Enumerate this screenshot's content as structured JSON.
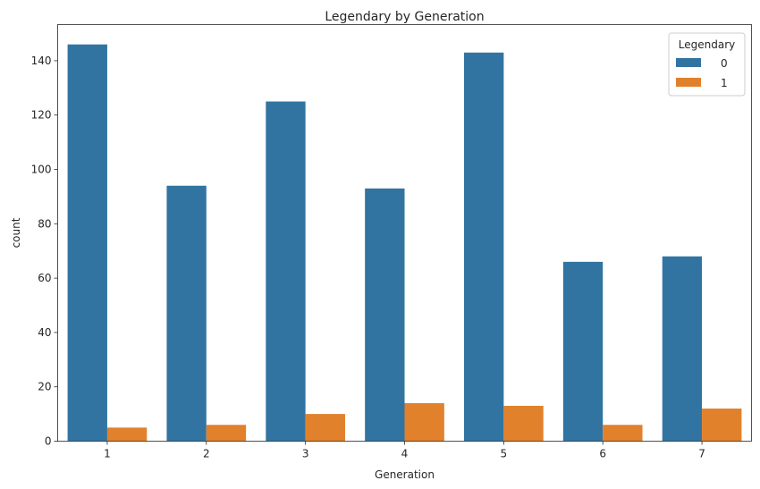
{
  "chart_data": {
    "type": "bar",
    "title": "Legendary by Generation",
    "xlabel": "Generation",
    "ylabel": "count",
    "categories": [
      "1",
      "2",
      "3",
      "4",
      "5",
      "6",
      "7"
    ],
    "series": [
      {
        "name": "0",
        "values": [
          146,
          94,
          125,
          93,
          143,
          66,
          68
        ],
        "color": "#3274a1"
      },
      {
        "name": "1",
        "values": [
          5,
          6,
          10,
          14,
          13,
          6,
          12
        ],
        "color": "#e1812c"
      }
    ],
    "ylim": [
      0,
      153.3
    ],
    "yticks": [
      0,
      20,
      40,
      60,
      80,
      100,
      120,
      140
    ],
    "legend": {
      "title": "Legendary",
      "placement": "top-right"
    },
    "grid": false
  }
}
